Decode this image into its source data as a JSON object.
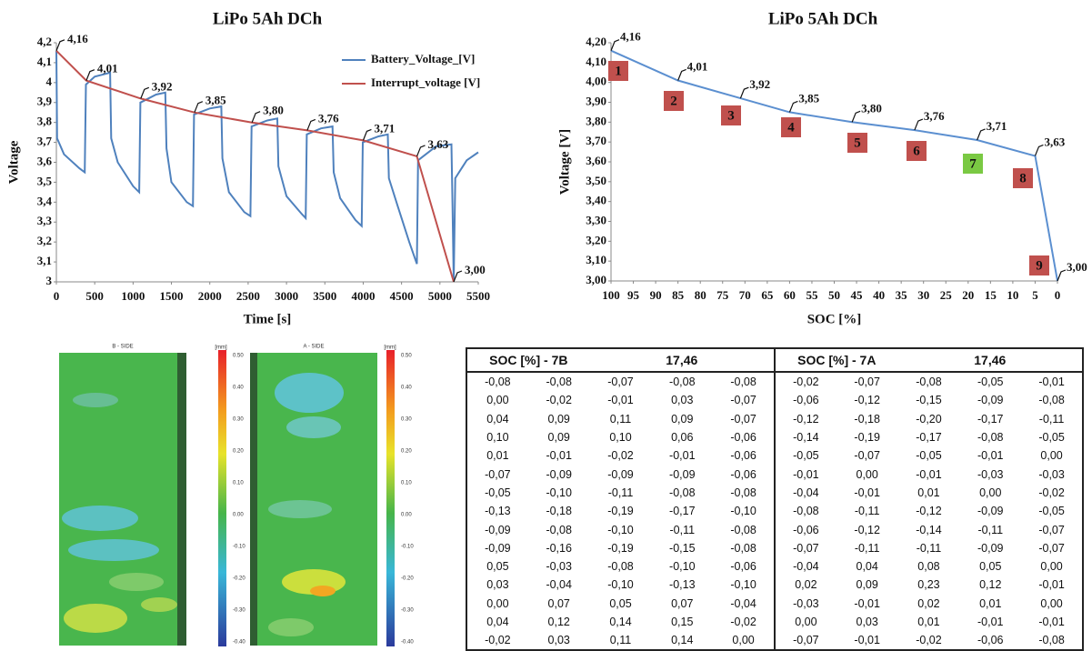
{
  "chart_data": [
    {
      "type": "line",
      "title": "LiPo 5Ah DCh",
      "xlabel": "Time [s]",
      "ylabel": "Voltage",
      "xlim": [
        0,
        5500
      ],
      "ylim": [
        3,
        4.2
      ],
      "xticks": [
        0,
        500,
        1000,
        1500,
        2000,
        2500,
        3000,
        3500,
        4000,
        4500,
        5000,
        5500
      ],
      "yticks": [
        3,
        {
          "value": 3.1,
          "label": "3,1"
        },
        {
          "value": 3.2,
          "label": "3,2"
        },
        {
          "value": 3.3,
          "label": "3,3"
        },
        {
          "value": 3.4,
          "label": "3,4"
        },
        {
          "value": 3.5,
          "label": "3,5"
        },
        {
          "value": 3.6,
          "label": "3,6"
        },
        {
          "value": 3.7,
          "label": "3,7"
        },
        {
          "value": 3.8,
          "label": "3,8"
        },
        {
          "value": 3.9,
          "label": "3,9"
        },
        4,
        {
          "value": 4.1,
          "label": "4,1"
        },
        {
          "value": 4.2,
          "label": "4,2"
        }
      ],
      "grid": false,
      "legend": "upper right",
      "series": [
        {
          "name": "Battery_Voltage_[V]",
          "color": "#4f81bd",
          "x": [
            0,
            10,
            100,
            300,
            370,
            385,
            500,
            700,
            715,
            800,
            1000,
            1080,
            1095,
            1300,
            1420,
            1435,
            1500,
            1700,
            1780,
            1795,
            2000,
            2150,
            2165,
            2250,
            2450,
            2530,
            2545,
            2750,
            2880,
            2895,
            3000,
            3200,
            3250,
            3265,
            3450,
            3600,
            3615,
            3700,
            3900,
            3980,
            3995,
            4200,
            4320,
            4335,
            4450,
            4600,
            4700,
            4715,
            4950,
            5150,
            5165,
            5180,
            5200,
            5350,
            5500
          ],
          "values": [
            4.16,
            3.72,
            3.64,
            3.57,
            3.55,
            3.99,
            4.03,
            4.05,
            3.72,
            3.6,
            3.48,
            3.45,
            3.9,
            3.94,
            3.95,
            3.67,
            3.5,
            3.4,
            3.38,
            3.84,
            3.87,
            3.88,
            3.62,
            3.45,
            3.35,
            3.33,
            3.78,
            3.81,
            3.82,
            3.58,
            3.43,
            3.34,
            3.32,
            3.74,
            3.77,
            3.78,
            3.55,
            3.42,
            3.31,
            3.28,
            3.7,
            3.73,
            3.74,
            3.52,
            3.38,
            3.2,
            3.09,
            3.61,
            3.68,
            3.69,
            3.38,
            3.0,
            3.52,
            3.61,
            3.65
          ]
        },
        {
          "name": "Interrupt_voltage [V]",
          "color": "#c0504d",
          "x": [
            0,
            390,
            1100,
            1800,
            2550,
            3270,
            4000,
            4700,
            5180
          ],
          "values": [
            4.16,
            4.01,
            3.92,
            3.85,
            3.8,
            3.76,
            3.71,
            3.63,
            3.0
          ],
          "value_labels": [
            "4,16",
            "4,01",
            "3,92",
            "3,85",
            "3,80",
            "3,76",
            "3,71",
            "3,63",
            "3,00"
          ]
        }
      ]
    },
    {
      "type": "line",
      "title": "LiPo 5Ah DCh",
      "xlabel": "SOC [%]",
      "ylabel": "Voltage [V]",
      "xlim": [
        100,
        0
      ],
      "ylim": [
        3,
        4.2
      ],
      "xticks": [
        100,
        95,
        90,
        85,
        80,
        75,
        70,
        65,
        60,
        55,
        50,
        45,
        40,
        35,
        30,
        25,
        20,
        15,
        10,
        5,
        0
      ],
      "yticks": [
        {
          "value": 3,
          "label": "3,00"
        },
        {
          "value": 3.1,
          "label": "3,10"
        },
        {
          "value": 3.2,
          "label": "3,20"
        },
        {
          "value": 3.3,
          "label": "3,30"
        },
        {
          "value": 3.4,
          "label": "3,40"
        },
        {
          "value": 3.5,
          "label": "3,50"
        },
        {
          "value": 3.6,
          "label": "3,60"
        },
        {
          "value": 3.7,
          "label": "3,70"
        },
        {
          "value": 3.8,
          "label": "3,80"
        },
        {
          "value": 3.9,
          "label": "3,90"
        },
        {
          "value": 4,
          "label": "4,00"
        },
        {
          "value": 4.1,
          "label": "4,10"
        },
        {
          "value": 4.2,
          "label": "4,20"
        }
      ],
      "grid": false,
      "series": [
        {
          "color": "#5b8fd0",
          "x": [
            100,
            85,
            71,
            60,
            46,
            32,
            18,
            5,
            0
          ],
          "values": [
            4.16,
            4.01,
            3.92,
            3.85,
            3.8,
            3.76,
            3.71,
            3.63,
            3.0
          ],
          "value_labels": [
            "4,16",
            "4,01",
            "3,92",
            "3,85",
            "3,80",
            "3,76",
            "3,71",
            "3,63",
            "3,00"
          ]
        }
      ],
      "annotations": [
        "1",
        "2",
        "3",
        "4",
        "5",
        "6",
        "7",
        "8",
        "9"
      ],
      "annotation_colors": [
        "#c0504d",
        "#c0504d",
        "#c0504d",
        "#c0504d",
        "#c0504d",
        "#c0504d",
        "#7ac943",
        "#c0504d",
        "#c0504d"
      ]
    }
  ],
  "heatmap": {
    "panels": [
      "B - SIDE",
      "A - SIDE"
    ],
    "unit": "[mm]",
    "scale": [
      "0.50",
      "0.40",
      "0.30",
      "0.20",
      "0.10",
      "0.00",
      "-0.10",
      "-0.20",
      "-0.30",
      "-0.40"
    ]
  },
  "table": {
    "header": [
      "SOC [%] - 7B",
      "17,46",
      "SOC [%] - 7A",
      "17,46"
    ],
    "rows": [
      [
        "-0,08",
        "-0,08",
        "-0,07",
        "-0,08",
        "-0,08",
        "-0,02",
        "-0,07",
        "-0,08",
        "-0,05",
        "-0,01"
      ],
      [
        "0,00",
        "-0,02",
        "-0,01",
        "0,03",
        "-0,07",
        "-0,06",
        "-0,12",
        "-0,15",
        "-0,09",
        "-0,08"
      ],
      [
        "0,04",
        "0,09",
        "0,11",
        "0,09",
        "-0,07",
        "-0,12",
        "-0,18",
        "-0,20",
        "-0,17",
        "-0,11"
      ],
      [
        "0,10",
        "0,09",
        "0,10",
        "0,06",
        "-0,06",
        "-0,14",
        "-0,19",
        "-0,17",
        "-0,08",
        "-0,05"
      ],
      [
        "0,01",
        "-0,01",
        "-0,02",
        "-0,01",
        "-0,06",
        "-0,05",
        "-0,07",
        "-0,05",
        "-0,01",
        "0,00"
      ],
      [
        "-0,07",
        "-0,09",
        "-0,09",
        "-0,09",
        "-0,06",
        "-0,01",
        "0,00",
        "-0,01",
        "-0,03",
        "-0,03"
      ],
      [
        "-0,05",
        "-0,10",
        "-0,11",
        "-0,08",
        "-0,08",
        "-0,04",
        "-0,01",
        "0,01",
        "0,00",
        "-0,02"
      ],
      [
        "-0,13",
        "-0,18",
        "-0,19",
        "-0,17",
        "-0,10",
        "-0,08",
        "-0,11",
        "-0,12",
        "-0,09",
        "-0,05"
      ],
      [
        "-0,09",
        "-0,08",
        "-0,10",
        "-0,11",
        "-0,08",
        "-0,06",
        "-0,12",
        "-0,14",
        "-0,11",
        "-0,07"
      ],
      [
        "-0,09",
        "-0,16",
        "-0,19",
        "-0,15",
        "-0,08",
        "-0,07",
        "-0,11",
        "-0,11",
        "-0,09",
        "-0,07"
      ],
      [
        "0,05",
        "-0,03",
        "-0,08",
        "-0,10",
        "-0,06",
        "-0,04",
        "0,04",
        "0,08",
        "0,05",
        "0,00"
      ],
      [
        "0,03",
        "-0,04",
        "-0,10",
        "-0,13",
        "-0,10",
        "0,02",
        "0,09",
        "0,23",
        "0,12",
        "-0,01"
      ],
      [
        "0,00",
        "0,07",
        "0,05",
        "0,07",
        "-0,04",
        "-0,03",
        "-0,01",
        "0,02",
        "0,01",
        "0,00"
      ],
      [
        "0,04",
        "0,12",
        "0,14",
        "0,15",
        "-0,02",
        "0,00",
        "0,03",
        "0,01",
        "-0,01",
        "-0,01"
      ],
      [
        "-0,02",
        "0,03",
        "0,11",
        "0,14",
        "0,00",
        "-0,07",
        "-0,01",
        "-0,02",
        "-0,06",
        "-0,08"
      ]
    ]
  }
}
